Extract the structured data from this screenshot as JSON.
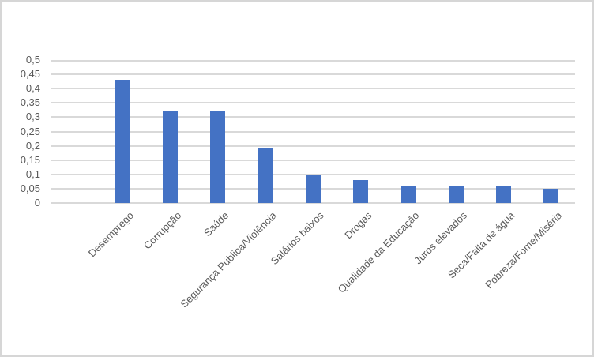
{
  "chart_data": {
    "type": "bar",
    "title": "",
    "xlabel": "",
    "ylabel": "",
    "categories": [
      "Desemprego",
      "Corrupção",
      "Saúde",
      "Segurança Pública/Violência",
      "Salários baixos",
      "Drogas",
      "Qualidade da Educação",
      "Juros elevados",
      "Seca/Falta de água",
      "Pobreza/Fome/Miséria"
    ],
    "values": [
      0.43,
      0.32,
      0.32,
      0.19,
      0.1,
      0.08,
      0.06,
      0.06,
      0.06,
      0.05
    ],
    "ylim": [
      0,
      0.5
    ],
    "ytick_step": 0.05,
    "ytick_labels": [
      "0",
      "0,05",
      "0,1",
      "0,15",
      "0,2",
      "0,25",
      "0,3",
      "0,35",
      "0,4",
      "0,45",
      "0,5"
    ],
    "decimal_separator": ",",
    "grid": true,
    "legend": "none",
    "empty_leading_slots": 1,
    "colors": {
      "bar": "#4472C4",
      "gridline": "#D9D9D9",
      "axis_text": "#595959",
      "canvas_border": "#D6D6D6"
    }
  }
}
